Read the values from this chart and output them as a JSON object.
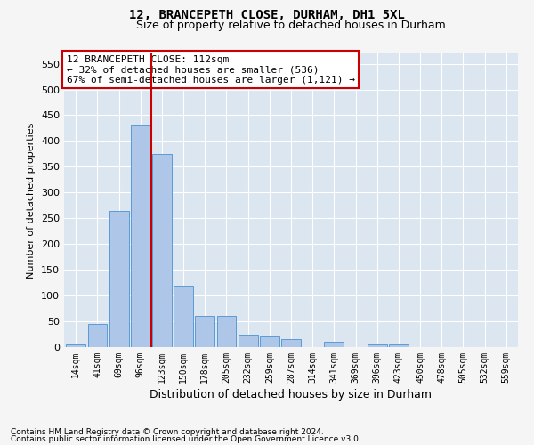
{
  "title": "12, BRANCEPETH CLOSE, DURHAM, DH1 5XL",
  "subtitle": "Size of property relative to detached houses in Durham",
  "xlabel": "Distribution of detached houses by size in Durham",
  "ylabel": "Number of detached properties",
  "footnote1": "Contains HM Land Registry data © Crown copyright and database right 2024.",
  "footnote2": "Contains public sector information licensed under the Open Government Licence v3.0.",
  "annotation_line1": "12 BRANCEPETH CLOSE: 112sqm",
  "annotation_line2": "← 32% of detached houses are smaller (536)",
  "annotation_line3": "67% of semi-detached houses are larger (1,121) →",
  "bar_labels": [
    "14sqm",
    "41sqm",
    "69sqm",
    "96sqm",
    "123sqm",
    "150sqm",
    "178sqm",
    "205sqm",
    "232sqm",
    "259sqm",
    "287sqm",
    "314sqm",
    "341sqm",
    "369sqm",
    "396sqm",
    "423sqm",
    "450sqm",
    "478sqm",
    "505sqm",
    "532sqm",
    "559sqm"
  ],
  "bar_values": [
    5,
    45,
    265,
    430,
    375,
    120,
    60,
    60,
    25,
    20,
    15,
    0,
    10,
    0,
    5,
    5,
    0,
    0,
    0,
    0,
    0
  ],
  "bar_color": "#aec6e8",
  "bar_edge_color": "#5b9bd5",
  "marker_color": "#cc0000",
  "ylim": [
    0,
    570
  ],
  "yticks": [
    0,
    50,
    100,
    150,
    200,
    250,
    300,
    350,
    400,
    450,
    500,
    550
  ],
  "plot_bg_color": "#dce6f1",
  "title_fontsize": 10,
  "subtitle_fontsize": 9,
  "annotation_fontsize": 8,
  "annotation_box_color": "#cc0000",
  "grid_color": "#ffffff"
}
